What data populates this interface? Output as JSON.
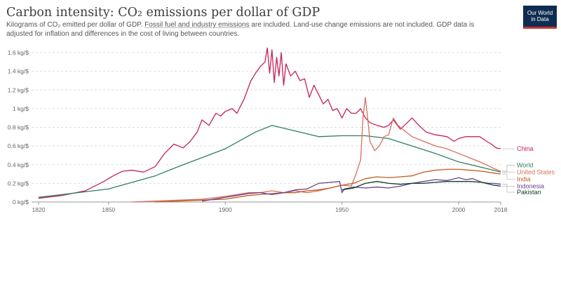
{
  "header": {
    "title": "Carbon intensity: CO₂ emissions per dollar of GDP",
    "subtitle_pre": "Kilograms of CO₂ emitted per dollar of GDP. ",
    "subtitle_link": "Fossil fuel and industry emissions",
    "subtitle_post": " are included. Land-use change emissions are not included. GDP data is adjusted for inflation and differences in the cost of living between countries.",
    "logo_line1": "Our World",
    "logo_line2": "in Data"
  },
  "chart_data": {
    "type": "line",
    "title": "Carbon intensity: CO₂ emissions per dollar of GDP",
    "ylabel": "",
    "xlabel": "",
    "xlim": [
      1817,
      2018
    ],
    "ylim": [
      0,
      1.6
    ],
    "x_ticks": [
      1820,
      1850,
      1900,
      1950,
      2000,
      2018
    ],
    "y_ticks": [
      {
        "value": 0,
        "label": "0 kg/$"
      },
      {
        "value": 0.2,
        "label": "0.2 kg/$"
      },
      {
        "value": 0.4,
        "label": "0.4 kg/$"
      },
      {
        "value": 0.6,
        "label": "0.6 kg/$"
      },
      {
        "value": 0.8,
        "label": "0.8 kg/$"
      },
      {
        "value": 1.0,
        "label": "1 kg/$"
      },
      {
        "value": 1.2,
        "label": "1.2 kg/$"
      },
      {
        "value": 1.4,
        "label": "1.4 kg/$"
      },
      {
        "value": 1.6,
        "label": "1.6 kg/$"
      }
    ],
    "grid": "horizontal dashed",
    "legend": "right, inline labels",
    "series": [
      {
        "name": "China",
        "color": "#c4225a",
        "points": [
          [
            1820,
            0.04
          ],
          [
            1830,
            0.07
          ],
          [
            1840,
            0.12
          ],
          [
            1848,
            0.22
          ],
          [
            1852,
            0.28
          ],
          [
            1856,
            0.33
          ],
          [
            1860,
            0.34
          ],
          [
            1865,
            0.32
          ],
          [
            1870,
            0.38
          ],
          [
            1874,
            0.52
          ],
          [
            1878,
            0.62
          ],
          [
            1882,
            0.58
          ],
          [
            1885,
            0.65
          ],
          [
            1888,
            0.75
          ],
          [
            1890,
            0.88
          ],
          [
            1893,
            0.82
          ],
          [
            1896,
            0.95
          ],
          [
            1898,
            0.92
          ],
          [
            1900,
            0.97
          ],
          [
            1903,
            1.0
          ],
          [
            1905,
            0.95
          ],
          [
            1908,
            1.1
          ],
          [
            1911,
            1.3
          ],
          [
            1913,
            1.38
          ],
          [
            1915,
            1.45
          ],
          [
            1917,
            1.5
          ],
          [
            1918,
            1.65
          ],
          [
            1919,
            1.38
          ],
          [
            1920,
            1.63
          ],
          [
            1921,
            1.28
          ],
          [
            1922,
            1.55
          ],
          [
            1923,
            1.35
          ],
          [
            1924,
            1.6
          ],
          [
            1925,
            1.25
          ],
          [
            1926,
            1.48
          ],
          [
            1928,
            1.35
          ],
          [
            1930,
            1.4
          ],
          [
            1932,
            1.3
          ],
          [
            1934,
            1.32
          ],
          [
            1936,
            1.12
          ],
          [
            1938,
            1.25
          ],
          [
            1940,
            1.15
          ],
          [
            1942,
            1.05
          ],
          [
            1944,
            1.1
          ],
          [
            1946,
            0.98
          ],
          [
            1948,
            1.0
          ],
          [
            1950,
            0.9
          ],
          [
            1952,
            1.0
          ],
          [
            1954,
            0.95
          ],
          [
            1956,
            0.95
          ],
          [
            1958,
            1.0
          ],
          [
            1960,
            0.9
          ],
          [
            1962,
            0.85
          ],
          [
            1965,
            0.82
          ],
          [
            1968,
            0.8
          ],
          [
            1970,
            0.82
          ],
          [
            1972,
            0.88
          ],
          [
            1975,
            0.78
          ],
          [
            1978,
            0.85
          ],
          [
            1980,
            0.9
          ],
          [
            1983,
            0.82
          ],
          [
            1986,
            0.75
          ],
          [
            1990,
            0.72
          ],
          [
            1995,
            0.7
          ],
          [
            1998,
            0.65
          ],
          [
            2000,
            0.68
          ],
          [
            2003,
            0.7
          ],
          [
            2006,
            0.7
          ],
          [
            2009,
            0.7
          ],
          [
            2012,
            0.65
          ],
          [
            2014,
            0.62
          ],
          [
            2016,
            0.58
          ],
          [
            2018,
            0.57
          ]
        ]
      },
      {
        "name": "World",
        "color": "#2e7d64",
        "points": [
          [
            1820,
            0.05
          ],
          [
            1830,
            0.08
          ],
          [
            1850,
            0.14
          ],
          [
            1870,
            0.28
          ],
          [
            1880,
            0.38
          ],
          [
            1900,
            0.57
          ],
          [
            1913,
            0.75
          ],
          [
            1920,
            0.82
          ],
          [
            1930,
            0.76
          ],
          [
            1940,
            0.7
          ],
          [
            1950,
            0.71
          ],
          [
            1960,
            0.71
          ],
          [
            1970,
            0.68
          ],
          [
            1980,
            0.6
          ],
          [
            1990,
            0.52
          ],
          [
            2000,
            0.43
          ],
          [
            2005,
            0.4
          ],
          [
            2010,
            0.37
          ],
          [
            2015,
            0.34
          ],
          [
            2018,
            0.32
          ]
        ]
      },
      {
        "name": "United States",
        "color": "#d6705e",
        "points": [
          [
            1860,
            0.0
          ],
          [
            1870,
            0.01
          ],
          [
            1880,
            0.02
          ],
          [
            1890,
            0.03
          ],
          [
            1900,
            0.06
          ],
          [
            1905,
            0.08
          ],
          [
            1910,
            0.1
          ],
          [
            1915,
            0.1
          ],
          [
            1920,
            0.12
          ],
          [
            1925,
            0.1
          ],
          [
            1930,
            0.12
          ],
          [
            1935,
            0.1
          ],
          [
            1940,
            0.12
          ],
          [
            1945,
            0.15
          ],
          [
            1950,
            0.18
          ],
          [
            1954,
            0.17
          ],
          [
            1956,
            0.3
          ],
          [
            1958,
            0.45
          ],
          [
            1959,
            0.9
          ],
          [
            1960,
            1.12
          ],
          [
            1961,
            0.9
          ],
          [
            1962,
            0.65
          ],
          [
            1964,
            0.55
          ],
          [
            1966,
            0.6
          ],
          [
            1968,
            0.7
          ],
          [
            1970,
            0.72
          ],
          [
            1972,
            0.9
          ],
          [
            1974,
            0.82
          ],
          [
            1976,
            0.78
          ],
          [
            1980,
            0.7
          ],
          [
            1985,
            0.65
          ],
          [
            1990,
            0.6
          ],
          [
            1995,
            0.57
          ],
          [
            2000,
            0.52
          ],
          [
            2005,
            0.47
          ],
          [
            2010,
            0.42
          ],
          [
            2015,
            0.36
          ],
          [
            2018,
            0.33
          ]
        ]
      },
      {
        "name": "India",
        "color": "#c15c1e",
        "points": [
          [
            1870,
            0.0
          ],
          [
            1880,
            0.01
          ],
          [
            1890,
            0.02
          ],
          [
            1900,
            0.03
          ],
          [
            1905,
            0.05
          ],
          [
            1910,
            0.07
          ],
          [
            1915,
            0.08
          ],
          [
            1920,
            0.09
          ],
          [
            1925,
            0.1
          ],
          [
            1930,
            0.1
          ],
          [
            1935,
            0.12
          ],
          [
            1940,
            0.13
          ],
          [
            1945,
            0.15
          ],
          [
            1950,
            0.18
          ],
          [
            1955,
            0.2
          ],
          [
            1960,
            0.25
          ],
          [
            1965,
            0.27
          ],
          [
            1970,
            0.26
          ],
          [
            1975,
            0.27
          ],
          [
            1980,
            0.28
          ],
          [
            1985,
            0.32
          ],
          [
            1990,
            0.34
          ],
          [
            1995,
            0.35
          ],
          [
            2000,
            0.35
          ],
          [
            2005,
            0.34
          ],
          [
            2010,
            0.33
          ],
          [
            2015,
            0.31
          ],
          [
            2018,
            0.3
          ]
        ]
      },
      {
        "name": "Indonesia",
        "color": "#6d3e91",
        "points": [
          [
            1890,
            0.01
          ],
          [
            1900,
            0.05
          ],
          [
            1905,
            0.07
          ],
          [
            1910,
            0.09
          ],
          [
            1915,
            0.1
          ],
          [
            1920,
            0.08
          ],
          [
            1925,
            0.1
          ],
          [
            1930,
            0.13
          ],
          [
            1935,
            0.14
          ],
          [
            1940,
            0.2
          ],
          [
            1945,
            0.21
          ],
          [
            1949,
            0.22
          ],
          [
            1950,
            0.1
          ],
          [
            1951,
            0.14
          ],
          [
            1955,
            0.16
          ],
          [
            1960,
            0.15
          ],
          [
            1965,
            0.16
          ],
          [
            1970,
            0.15
          ],
          [
            1975,
            0.17
          ],
          [
            1980,
            0.2
          ],
          [
            1985,
            0.22
          ],
          [
            1990,
            0.24
          ],
          [
            1995,
            0.23
          ],
          [
            2000,
            0.26
          ],
          [
            2003,
            0.24
          ],
          [
            2006,
            0.25
          ],
          [
            2010,
            0.21
          ],
          [
            2013,
            0.2
          ],
          [
            2015,
            0.2
          ],
          [
            2018,
            0.19
          ]
        ]
      },
      {
        "name": "Pakistan",
        "color": "#0b3e1e",
        "points": [
          [
            1950,
            0.13
          ],
          [
            1955,
            0.15
          ],
          [
            1960,
            0.2
          ],
          [
            1965,
            0.22
          ],
          [
            1970,
            0.2
          ],
          [
            1975,
            0.19
          ],
          [
            1980,
            0.2
          ],
          [
            1985,
            0.2
          ],
          [
            1990,
            0.21
          ],
          [
            1995,
            0.22
          ],
          [
            2000,
            0.22
          ],
          [
            2005,
            0.22
          ],
          [
            2010,
            0.21
          ],
          [
            2015,
            0.18
          ],
          [
            2018,
            0.17
          ]
        ]
      }
    ],
    "label_y": {
      "China": 0.57,
      "World": 0.395,
      "United States": 0.32,
      "India": 0.245,
      "Indonesia": 0.17,
      "Pakistan": 0.105
    }
  }
}
